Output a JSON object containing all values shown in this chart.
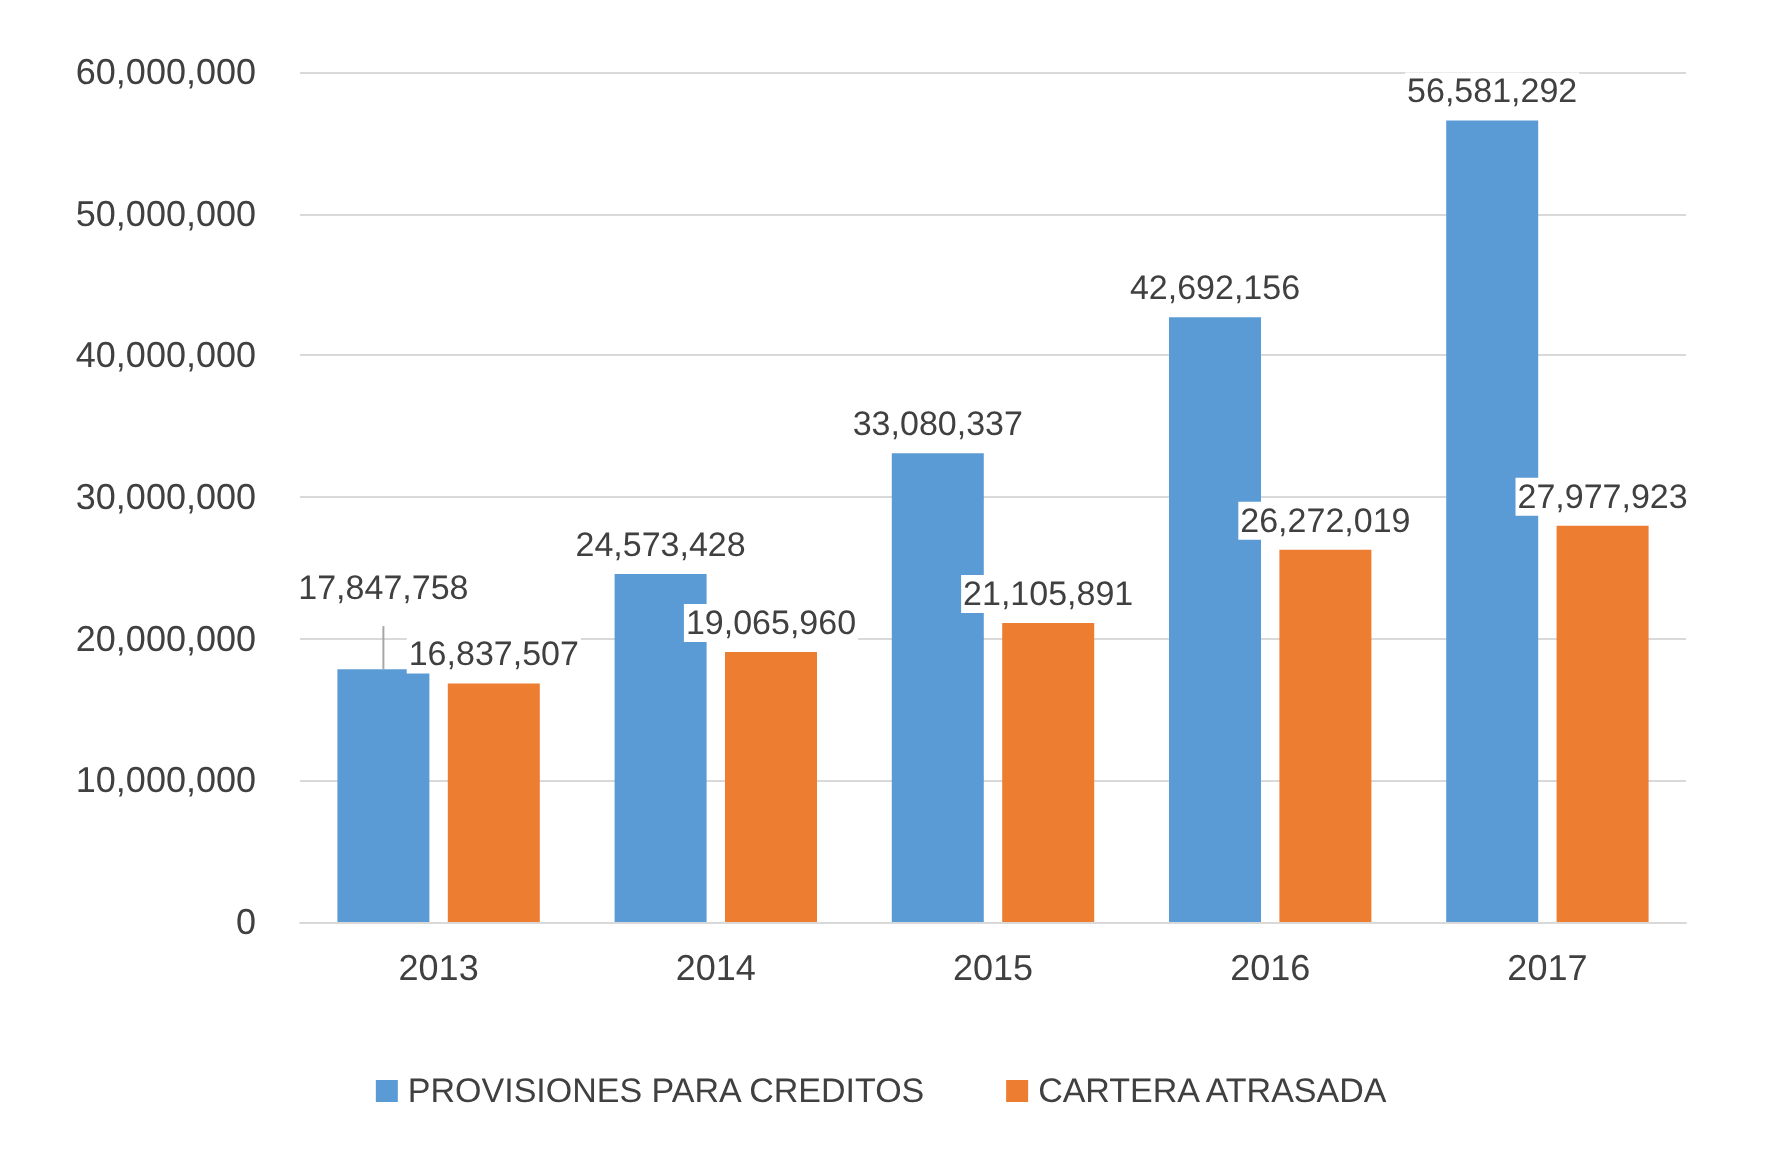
{
  "chart_data": {
    "type": "bar",
    "categories": [
      "2013",
      "2014",
      "2015",
      "2016",
      "2017"
    ],
    "series": [
      {
        "name": "PROVISIONES PARA CREDITOS",
        "color": "#5b9bd5",
        "values": [
          17847758,
          24573428,
          33080337,
          42692156,
          56581292
        ],
        "value_labels": [
          "17,847,758",
          "24,573,428",
          "33,080,337",
          "42,692,156",
          "56,581,292"
        ]
      },
      {
        "name": "CARTERA ATRASADA",
        "color": "#ed7d31",
        "values": [
          16837507,
          19065960,
          21105891,
          26272019,
          27977923
        ],
        "value_labels": [
          "16,837,507",
          "19,065,960",
          "21,105,891",
          "26,272,019",
          "27,977,923"
        ]
      }
    ],
    "ylim": [
      0,
      60000000
    ],
    "yticks": [
      0,
      {
        "value": 10000000,
        "label": "10,000,000"
      },
      {
        "value": 20000000,
        "label": "20,000,000"
      },
      {
        "value": 30000000,
        "label": "30,000,000"
      },
      {
        "value": 40000000,
        "label": "40,000,000"
      },
      {
        "value": 50000000,
        "label": "50,000,000"
      },
      {
        "value": 60000000,
        "label": "60,000,000"
      }
    ],
    "grid": "y",
    "legend": "bottom"
  }
}
